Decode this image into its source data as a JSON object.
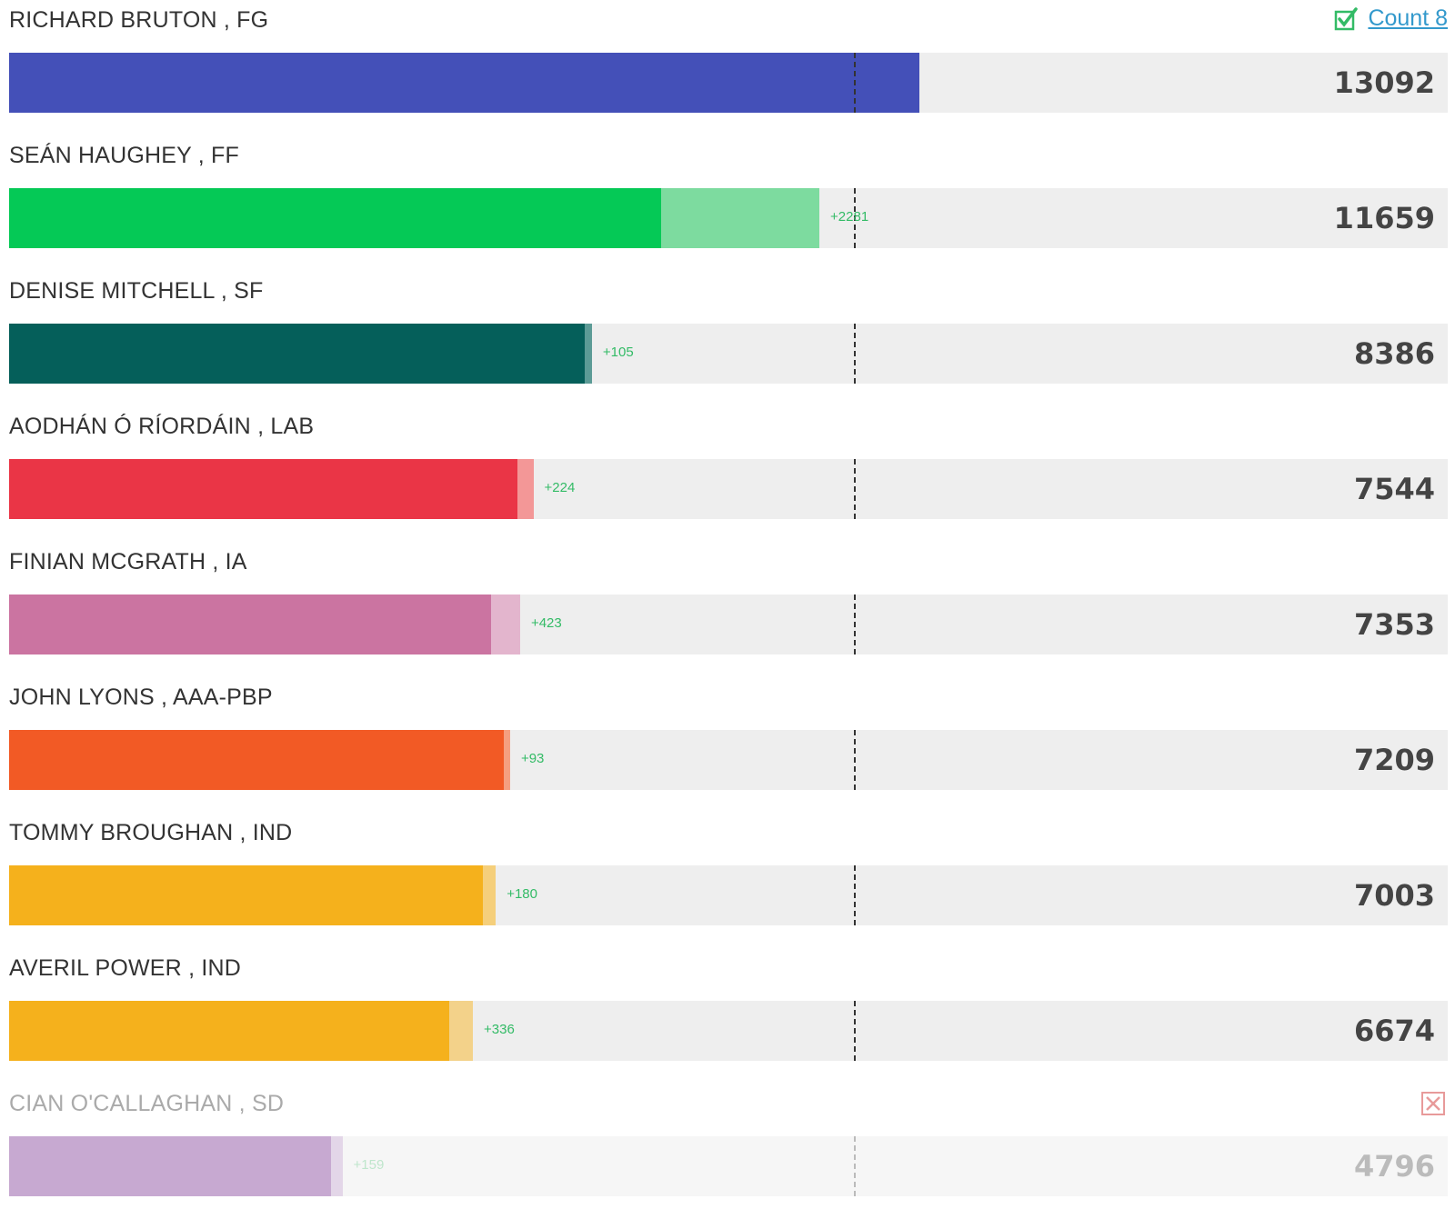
{
  "chart_data": {
    "type": "bar",
    "orientation": "horizontal",
    "stacked": true,
    "count_label": "Count 8",
    "quota": 12160,
    "xlim": [
      0,
      20700
    ],
    "series": [
      {
        "key": "votes"
      },
      {
        "key": "transfer"
      }
    ],
    "candidates": [
      {
        "name": "RICHARD BRUTON , FG",
        "total": 13092,
        "transfer": 0,
        "gain_label": "",
        "color": "#4450b8",
        "light_color": "#4450b8",
        "status": "elected"
      },
      {
        "name": "SEÁN HAUGHEY , FF",
        "total": 11659,
        "transfer": 2281,
        "gain_label": "+2281",
        "color": "#05c956",
        "light_color": "#7ddb9f",
        "status": "active"
      },
      {
        "name": "DENISE MITCHELL , SF",
        "total": 8386,
        "transfer": 105,
        "gain_label": "+105",
        "color": "#055f5a",
        "light_color": "#5c9b96",
        "status": "active"
      },
      {
        "name": "AODHÁN Ó RÍORDÁIN , LAB",
        "total": 7544,
        "transfer": 224,
        "gain_label": "+224",
        "color": "#ea3546",
        "light_color": "#f39797",
        "status": "active"
      },
      {
        "name": "FINIAN MCGRATH , IA",
        "total": 7353,
        "transfer": 423,
        "gain_label": "+423",
        "color": "#cb74a1",
        "light_color": "#e3b5cd",
        "status": "active"
      },
      {
        "name": "JOHN LYONS , AAA-PBP",
        "total": 7209,
        "transfer": 93,
        "gain_label": "+93",
        "color": "#f25a25",
        "light_color": "#f59f80",
        "status": "active"
      },
      {
        "name": "TOMMY BROUGHAN , IND",
        "total": 7003,
        "transfer": 180,
        "gain_label": "+180",
        "color": "#f5b11c",
        "light_color": "#f5cf7b",
        "status": "active"
      },
      {
        "name": "AVERIL POWER , IND",
        "total": 6674,
        "transfer": 336,
        "gain_label": "+336",
        "color": "#f5b11c",
        "light_color": "#f3d28a",
        "status": "active"
      },
      {
        "name": "CIAN O'CALLAGHAN , SD",
        "total": 4796,
        "transfer": 159,
        "gain_label": "+159",
        "color": "#c7a9d1",
        "light_color": "#e3d6e8",
        "status": "eliminated"
      }
    ]
  },
  "icons": {
    "elected": "check-box-icon",
    "eliminated": "close-box-icon"
  },
  "colors": {
    "elected_icon": "#33bb66",
    "eliminated_icon": "#e89a9a",
    "link": "#3399cc"
  }
}
